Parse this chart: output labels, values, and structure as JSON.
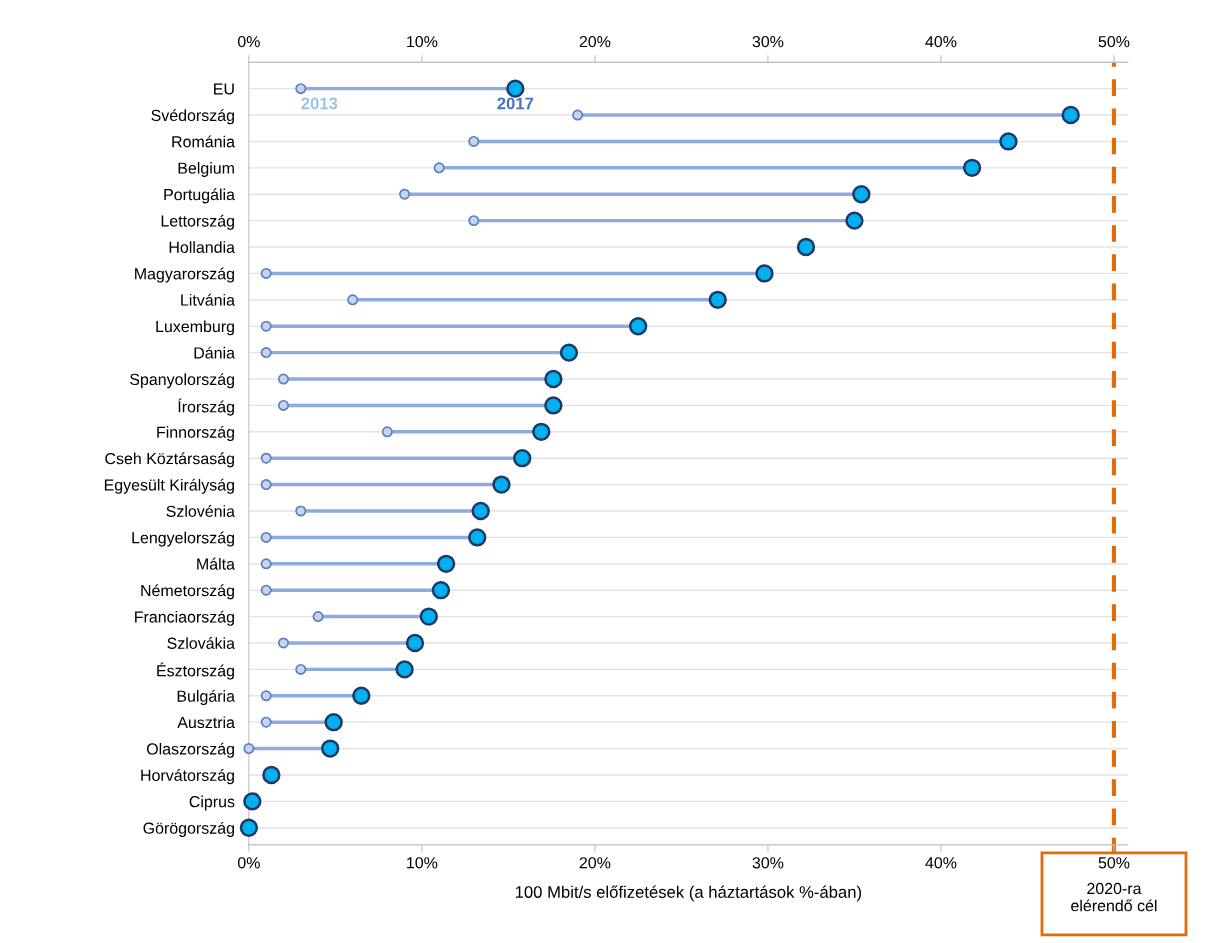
{
  "chart_data": {
    "type": "scatter",
    "orientation": "horizontal",
    "categories": [
      "EU",
      "Svédország",
      "Románia",
      "Belgium",
      "Portugália",
      "Lettország",
      "Hollandia",
      "Magyarország",
      "Litvánia",
      "Luxemburg",
      "Dánia",
      "Spanyolország",
      "Írország",
      "Finnország",
      "Cseh Köztársaság",
      "Egyesült Királyság",
      "Szlovénia",
      "Lengyelország",
      "Málta",
      "Németország",
      "Franciaország",
      "Szlovákia",
      "Észtország",
      "Bulgária",
      "Ausztria",
      "Olaszország",
      "Horvátország",
      "Ciprus",
      "Görögország"
    ],
    "series": [
      {
        "name": "2013",
        "color": "#c5d5ee",
        "values": [
          3,
          19,
          13,
          11,
          9,
          13,
          null,
          1,
          6,
          1,
          1,
          2,
          2,
          8,
          1,
          1,
          3,
          1,
          1,
          1,
          4,
          2,
          3,
          1,
          1,
          0,
          null,
          null,
          null
        ]
      },
      {
        "name": "2017",
        "color": "#00b0f0",
        "values": [
          15.4,
          47.5,
          43.9,
          41.8,
          35.4,
          35.0,
          32.2,
          29.8,
          27.1,
          22.5,
          18.5,
          17.6,
          17.6,
          16.9,
          15.8,
          14.6,
          13.4,
          13.2,
          11.4,
          11.1,
          10.4,
          9.6,
          9.0,
          6.5,
          4.9,
          4.7,
          1.3,
          0.2,
          0
        ]
      }
    ],
    "xlabel": "100 Mbit/s előfizetések (a háztartások %-ában)",
    "xlim": [
      0,
      50.8
    ],
    "xticks": [
      {
        "value": 0,
        "label": "0%"
      },
      {
        "value": 10,
        "label": "10%"
      },
      {
        "value": 20,
        "label": "20%"
      },
      {
        "value": 30,
        "label": "30%"
      },
      {
        "value": 40,
        "label": "40%"
      },
      {
        "value": 50,
        "label": "50%"
      }
    ],
    "x2lim": [
      0,
      50.8
    ],
    "x2ticks": [
      {
        "value": 0,
        "label": "0%"
      },
      {
        "value": 10,
        "label": "10%"
      },
      {
        "value": 20,
        "label": "20%"
      },
      {
        "value": 30,
        "label": "30%"
      },
      {
        "value": 40,
        "label": "40%"
      },
      {
        "value": 50,
        "label": "50%"
      }
    ],
    "ref_lines": [
      {
        "axis": "x",
        "value": 50,
        "label": "2020-ra\nelérendő cél",
        "color": "#e36c0a",
        "line_style": "dashed"
      }
    ],
    "grid": "y",
    "legend": false,
    "marker": "circle"
  }
}
